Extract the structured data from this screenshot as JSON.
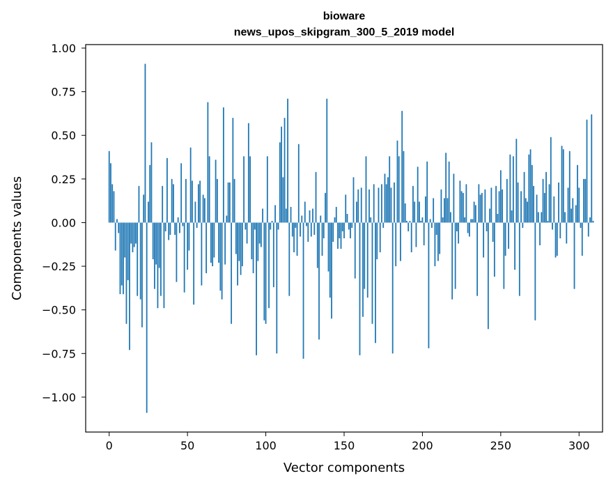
{
  "chart_data": {
    "type": "bar",
    "title_line1": "bioware",
    "title_line2": "news_upos_skipgram_300_5_2019 model",
    "xlabel": "Vector components",
    "ylabel": "Components values",
    "xlim": [
      -15,
      315
    ],
    "ylim": [
      -1.2,
      1.02
    ],
    "xticks": [
      0,
      50,
      100,
      150,
      200,
      250,
      300
    ],
    "xtick_labels": [
      "0",
      "50",
      "100",
      "150",
      "200",
      "250",
      "300"
    ],
    "yticks": [
      1.0,
      0.75,
      0.5,
      0.25,
      0.0,
      -0.25,
      -0.5,
      -0.75,
      -1.0
    ],
    "ytick_labels": [
      "1.00",
      "0.75",
      "0.50",
      "0.25",
      "0.00",
      "−0.25",
      "−0.50",
      "−0.75",
      "−1.00"
    ],
    "bar_color": "#1f77b4",
    "grid": false,
    "values": [
      0.41,
      0.34,
      0.22,
      0.18,
      -0.16,
      0.02,
      -0.06,
      -0.41,
      -0.36,
      -0.41,
      -0.2,
      -0.58,
      -0.33,
      -0.73,
      -0.12,
      -0.17,
      -0.14,
      -0.12,
      -0.42,
      0.21,
      -0.44,
      -0.6,
      0.16,
      0.91,
      -1.09,
      0.12,
      0.33,
      0.46,
      -0.21,
      -0.38,
      -0.24,
      -0.49,
      -0.26,
      -0.42,
      0.21,
      -0.49,
      -0.05,
      0.37,
      -0.1,
      -0.07,
      0.25,
      0.22,
      -0.07,
      -0.34,
      0.03,
      -0.06,
      0.34,
      -0.02,
      -0.4,
      0.25,
      -0.27,
      -0.16,
      0.43,
      0.24,
      -0.47,
      0.12,
      -0.03,
      0.22,
      0.24,
      -0.36,
      0.16,
      0.14,
      -0.29,
      0.69,
      0.38,
      -0.23,
      -0.25,
      -0.2,
      0.36,
      0.25,
      -0.23,
      -0.39,
      -0.44,
      0.66,
      -0.24,
      0.04,
      0.23,
      0.23,
      -0.58,
      0.6,
      0.25,
      -0.18,
      -0.36,
      -0.22,
      -0.3,
      -0.25,
      0.38,
      -0.04,
      -0.12,
      0.57,
      0.38,
      -0.21,
      -0.29,
      -0.04,
      -0.76,
      -0.22,
      -0.12,
      -0.14,
      0.08,
      -0.56,
      -0.58,
      0.38,
      -0.49,
      -0.04,
      0.01,
      -0.37,
      0.1,
      -0.75,
      -0.04,
      0.46,
      0.55,
      0.26,
      0.6,
      0.08,
      0.71,
      -0.42,
      0.09,
      -0.08,
      -0.17,
      -0.03,
      -0.19,
      0.45,
      -0.08,
      0.04,
      -0.78,
      0.12,
      -0.02,
      -0.11,
      0.07,
      -0.08,
      0.08,
      -0.07,
      0.29,
      -0.26,
      -0.67,
      0.04,
      -0.19,
      -0.09,
      0.17,
      0.71,
      -0.28,
      -0.43,
      -0.55,
      -0.11,
      0.03,
      0.09,
      -0.15,
      -0.09,
      -0.15,
      -0.05,
      -0.09,
      0.16,
      0.05,
      -0.04,
      -0.09,
      -0.03,
      0.26,
      -0.32,
      0.12,
      0.19,
      -0.76,
      0.2,
      -0.54,
      -0.38,
      0.38,
      -0.43,
      0.19,
      0.03,
      -0.58,
      0.22,
      -0.69,
      -0.21,
      0.2,
      -0.17,
      0.22,
      -0.03,
      0.28,
      0.22,
      0.26,
      0.38,
      0.2,
      -0.75,
      0.23,
      -0.25,
      0.47,
      0.38,
      -0.22,
      0.64,
      0.41,
      0.11,
      0.01,
      -0.05,
      0.01,
      -0.17,
      0.21,
      0.12,
      -0.14,
      0.32,
      0.12,
      0.01,
      0.03,
      -0.13,
      0.15,
      0.35,
      -0.72,
      0.02,
      -0.03,
      0.14,
      -0.25,
      -0.07,
      -0.22,
      -0.18,
      0.19,
      0.03,
      0.14,
      0.4,
      0.14,
      0.35,
      0.06,
      -0.44,
      0.28,
      -0.38,
      -0.05,
      -0.12,
      0.24,
      0.18,
      0.17,
      0.03,
      0.22,
      -0.06,
      -0.08,
      0.02,
      0.02,
      0.12,
      0.1,
      -0.42,
      0.22,
      0.16,
      0.17,
      -0.2,
      0.19,
      -0.05,
      -0.61,
      0.08,
      0.2,
      -0.11,
      -0.31,
      0.21,
      0.05,
      0.18,
      0.3,
      0.19,
      -0.38,
      -0.19,
      0.25,
      -0.15,
      0.39,
      0.07,
      0.38,
      -0.27,
      0.48,
      0.23,
      -0.42,
      0.18,
      -0.03,
      0.29,
      0.14,
      0.12,
      0.39,
      0.42,
      0.33,
      0.21,
      -0.56,
      0.16,
      0.06,
      -0.13,
      0.06,
      0.25,
      0.17,
      0.29,
      0.01,
      0.22,
      0.49,
      -0.04,
      0.15,
      -0.2,
      -0.19,
      0.23,
      -0.09,
      0.44,
      0.42,
      0.06,
      -0.12,
      0.2,
      0.41,
      0.08,
      0.14,
      -0.38,
      0.1,
      0.33,
      0.2,
      -0.03,
      -0.19,
      0.25,
      0.25,
      0.59,
      -0.08,
      0.03,
      0.62,
      0.01
    ]
  }
}
